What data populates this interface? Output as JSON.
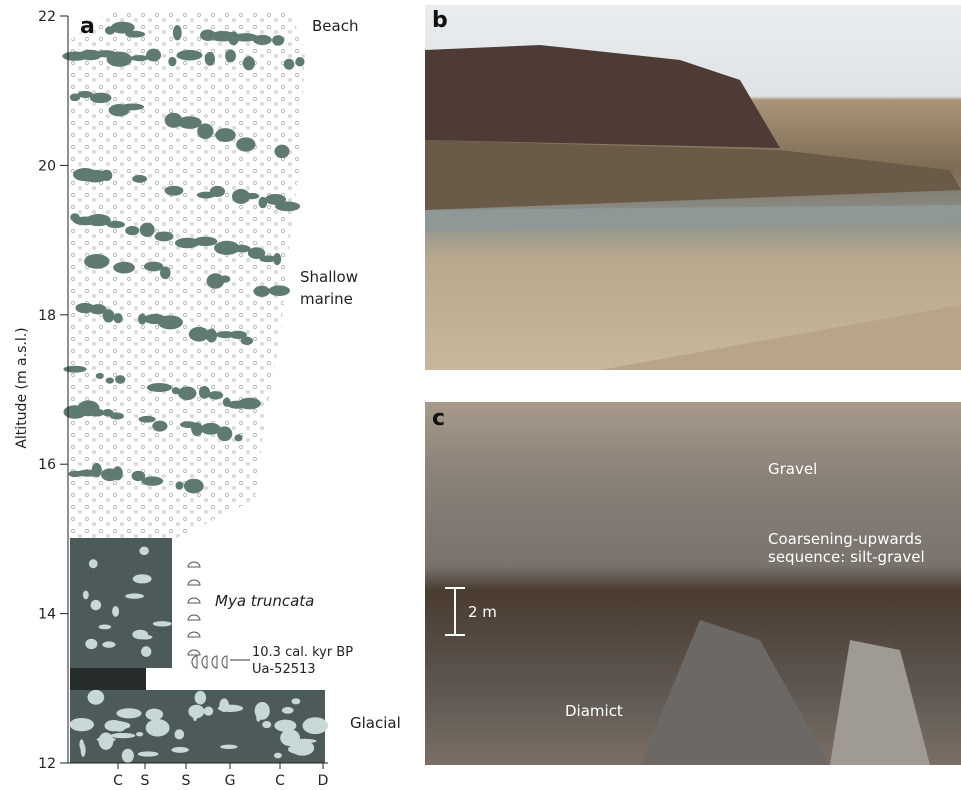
{
  "panel_a": {
    "label": "a",
    "y_axis": {
      "title": "Altitude (m a.s.l.)",
      "lim": [
        12,
        22
      ],
      "ticks": [
        12,
        14,
        16,
        18,
        20,
        22
      ]
    },
    "x_axis_labels": [
      "C",
      "S",
      "S",
      "G",
      "C",
      "D"
    ],
    "units": {
      "beach": "Beach",
      "shallow_marine": "Shallow marine",
      "glacial": "Glacial"
    },
    "fossil": "Mya truncata",
    "date": {
      "age": "10.3 cal. kyr BP",
      "lab_id": "Ua-52513"
    }
  },
  "panel_b": {
    "label": "b"
  },
  "panel_c": {
    "label": "c",
    "gravel": "Gravel",
    "sequence": "Coarsening-upwards sequence: silt-gravel",
    "scale": "2 m",
    "diamict": "Diamict"
  }
}
